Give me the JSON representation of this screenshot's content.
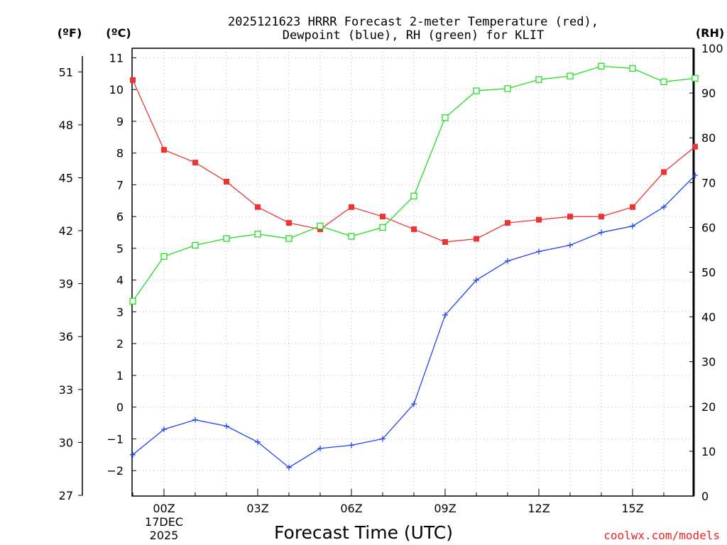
{
  "chart_data": {
    "type": "line",
    "title_line1": "2025121623 HRRR Forecast 2-meter Temperature (red),",
    "title_line2": "Dewpoint (blue), RH (green) for KLIT",
    "xlabel": "Forecast Time (UTC)",
    "credit": "coolwx.com/models",
    "units": {
      "fahrenheit": "(ºF)",
      "celsius": "(ºC)",
      "rh": "(RH)"
    },
    "x_hours": [
      -1,
      0,
      1,
      2,
      3,
      4,
      5,
      6,
      7,
      8,
      9,
      10,
      11,
      12,
      13,
      14,
      15,
      16,
      17
    ],
    "x_ticks": [
      {
        "hour": 0,
        "label": "00Z",
        "sub1": "17DEC",
        "sub2": "2025"
      },
      {
        "hour": 3,
        "label": "03Z"
      },
      {
        "hour": 6,
        "label": "06Z"
      },
      {
        "hour": 9,
        "label": "09Z"
      },
      {
        "hour": 12,
        "label": "12Z"
      },
      {
        "hour": 15,
        "label": "15Z"
      }
    ],
    "celsius_axis": {
      "range": [
        -2.8,
        11.3
      ],
      "ticks": [
        -2,
        -1,
        0,
        1,
        2,
        3,
        4,
        5,
        6,
        7,
        8,
        9,
        10,
        11
      ]
    },
    "fahrenheit_axis": {
      "ticks": [
        27,
        30,
        33,
        36,
        39,
        42,
        45,
        48,
        51
      ]
    },
    "rh_axis": {
      "range": [
        0,
        100
      ],
      "ticks": [
        0,
        10,
        20,
        30,
        40,
        50,
        60,
        70,
        80,
        90,
        100
      ]
    },
    "series": [
      {
        "name": "Temperature",
        "axis": "celsius",
        "color": "#ee3333",
        "marker": "filled-square",
        "values": [
          10.3,
          8.1,
          7.7,
          7.1,
          6.3,
          5.8,
          5.6,
          6.3,
          6.0,
          5.6,
          5.2,
          5.3,
          5.8,
          5.9,
          6.0,
          6.0,
          6.3,
          7.4,
          8.2
        ]
      },
      {
        "name": "Dewpoint",
        "axis": "celsius",
        "color": "#2244ee",
        "marker": "plus",
        "values": [
          -1.5,
          -0.7,
          -0.4,
          -0.6,
          -1.1,
          -1.9,
          -1.3,
          -1.2,
          -1.0,
          0.1,
          2.9,
          4.0,
          4.6,
          4.9,
          5.1,
          5.5,
          5.7,
          6.3,
          7.3
        ]
      },
      {
        "name": "RH",
        "axis": "rh",
        "color": "#22dd22",
        "marker": "open-square",
        "values": [
          43.5,
          53.5,
          56,
          57.5,
          58.5,
          57.5,
          60.3,
          58,
          60,
          67,
          84.5,
          90.5,
          91,
          93,
          93.8,
          96,
          95.5,
          92.5,
          93.3
        ]
      }
    ]
  }
}
